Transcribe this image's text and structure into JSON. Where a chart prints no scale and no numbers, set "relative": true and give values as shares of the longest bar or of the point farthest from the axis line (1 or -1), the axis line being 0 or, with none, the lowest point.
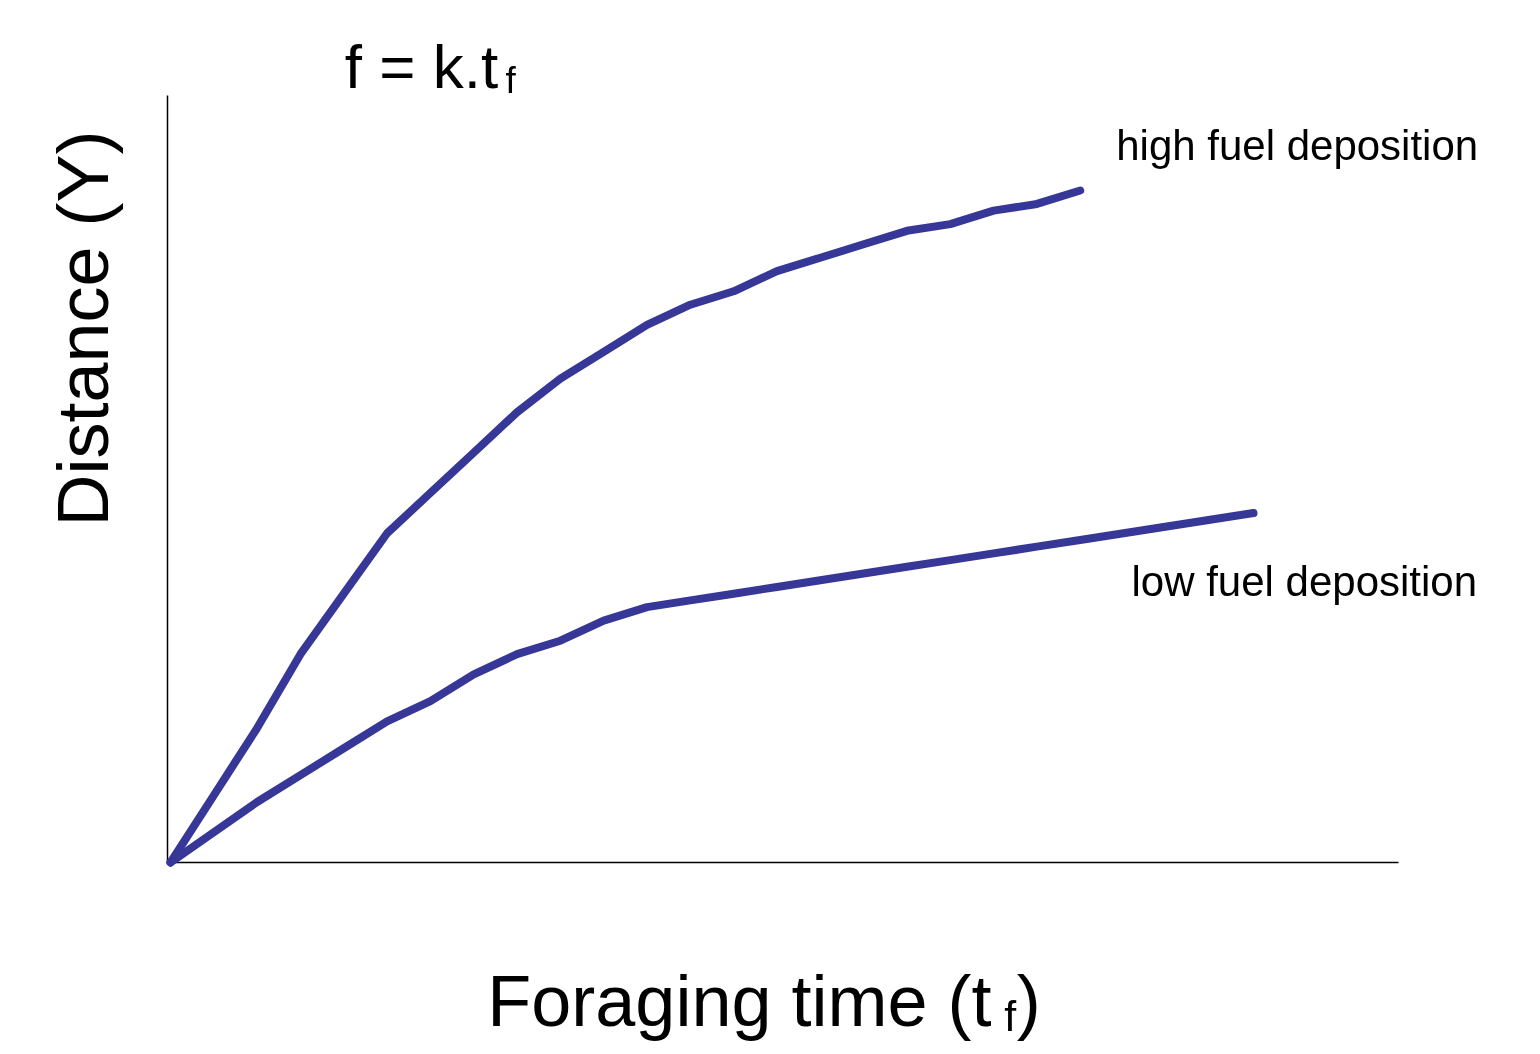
{
  "chart_data": {
    "type": "line",
    "relative": true,
    "title": "f = k.t$_{f}$",
    "xlabel": "Foraging time (t$_{f}$)",
    "ylabel": "Distance (Y)",
    "categories": [
      null,
      null,
      null,
      null,
      null,
      null,
      null,
      null,
      null,
      null,
      null,
      null,
      null,
      null,
      null,
      null,
      null,
      null,
      null,
      null,
      null,
      null,
      null,
      null,
      null,
      null
    ],
    "grid": false,
    "line_style": "solid",
    "marker": "none",
    "series": [
      {
        "name": "high fuel deposition",
        "color": "#363797",
        "values": [
          0,
          0.1,
          0.2,
          0.31,
          0.4,
          0.49,
          0.55,
          0.61,
          0.67,
          0.72,
          0.76,
          0.8,
          0.83,
          0.85,
          0.88,
          0.9,
          0.92,
          0.94,
          0.95,
          0.97,
          0.98,
          1.0,
          null,
          null,
          null,
          null
        ]
      },
      {
        "name": "low fuel deposition",
        "color": "#363797",
        "values": [
          0,
          0.045,
          0.09,
          0.13,
          0.17,
          0.21,
          0.24,
          0.28,
          0.31,
          0.33,
          0.36,
          0.38,
          0.39,
          0.4,
          0.41,
          0.42,
          0.43,
          0.44,
          0.45,
          0.46,
          0.47,
          0.48,
          0.49,
          0.5,
          0.51,
          0.52
        ]
      }
    ]
  }
}
